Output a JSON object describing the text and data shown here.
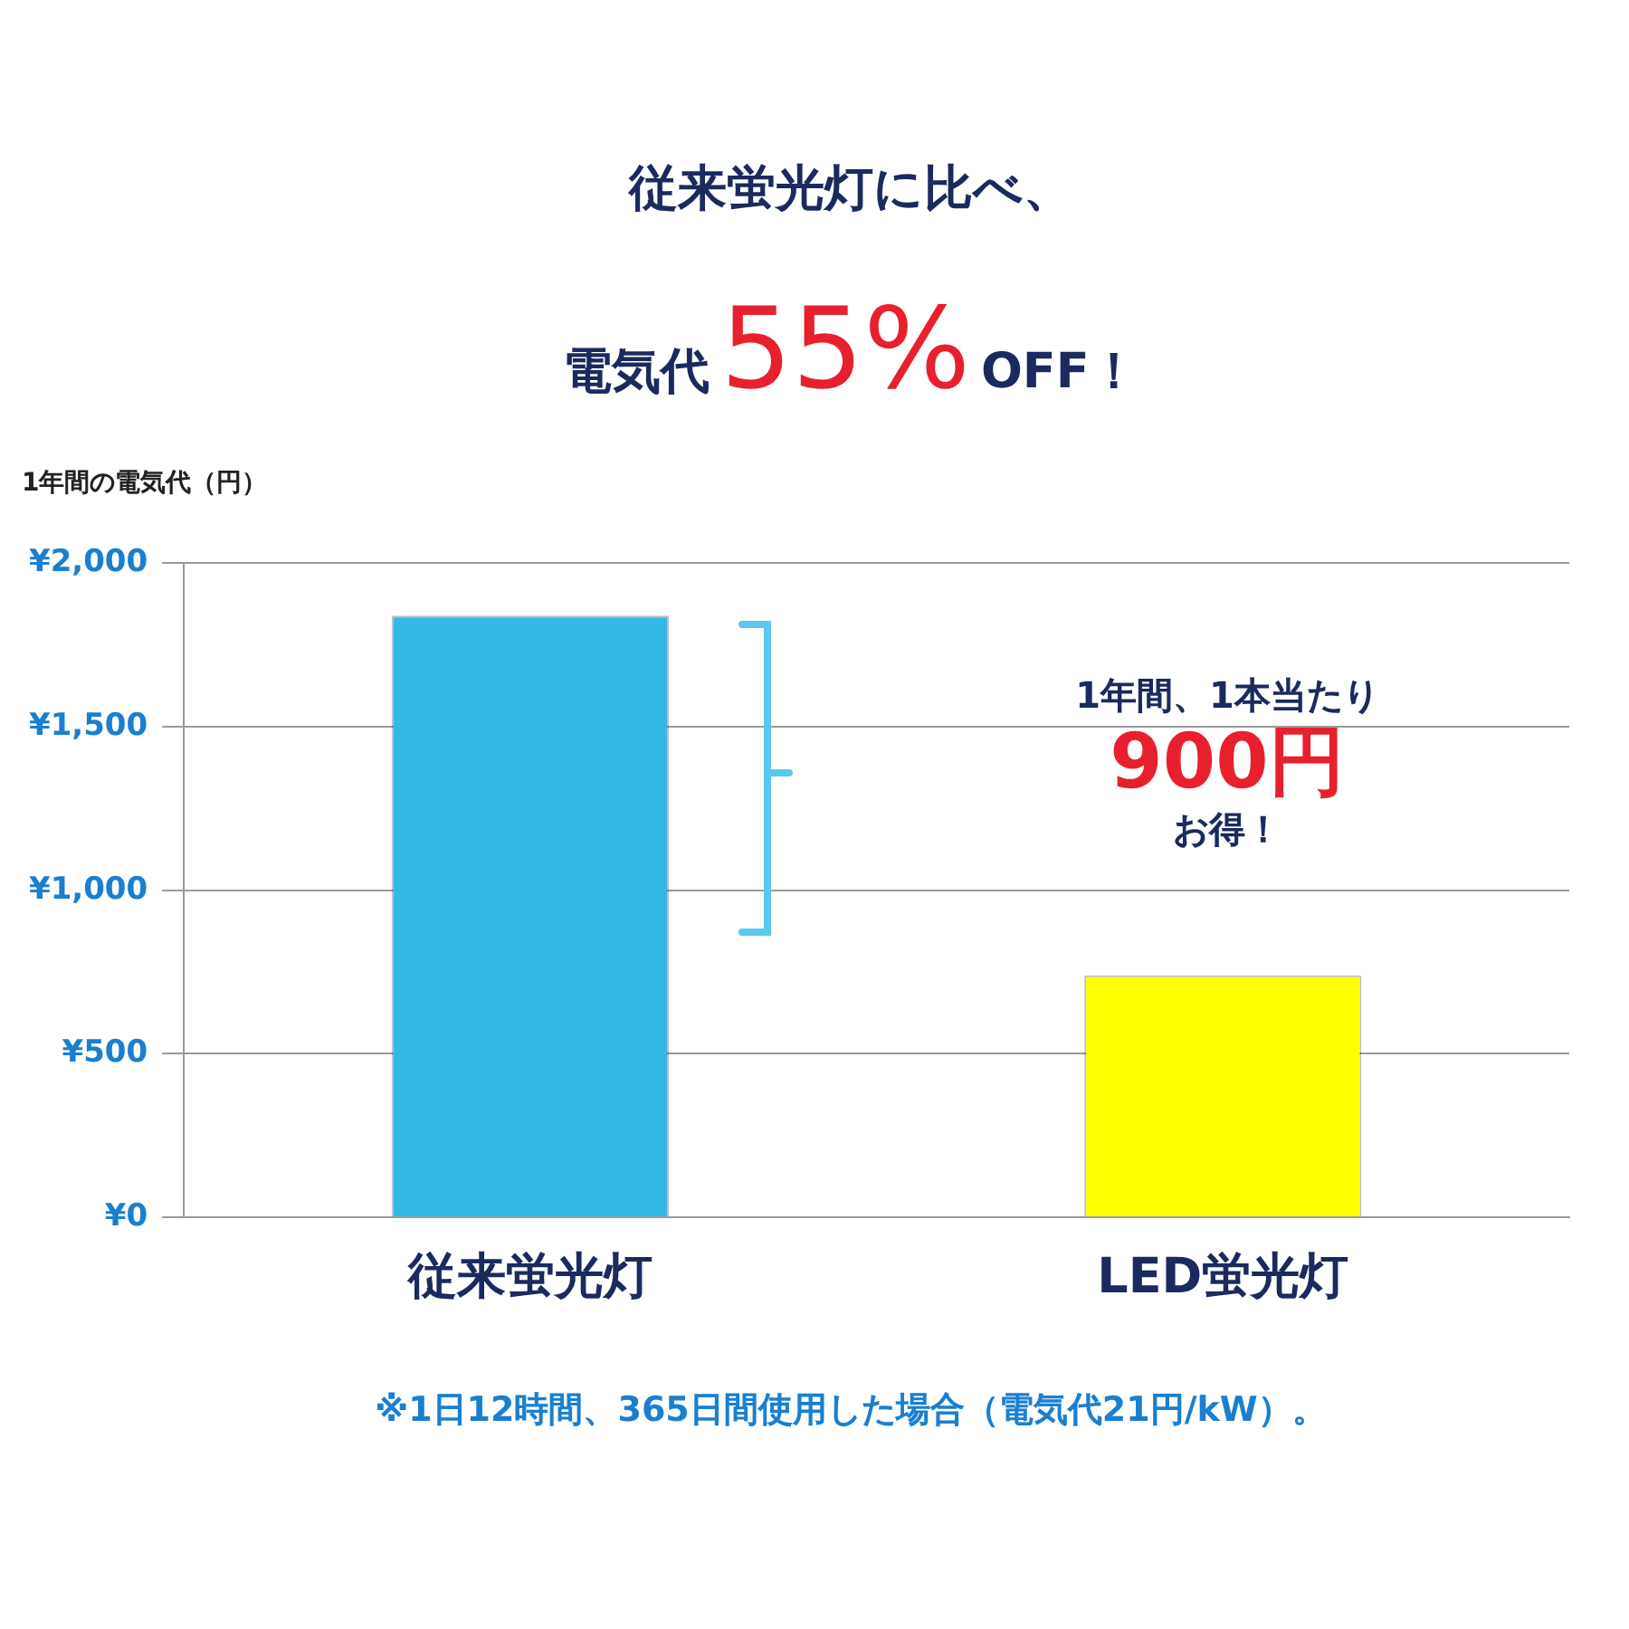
{
  "chart_data": {
    "type": "bar",
    "title": "従来蛍光灯に比べ、",
    "subtitle": "電気代55%OFF！",
    "ylabel": "1年間の電気代（円）",
    "categories": [
      "従来蛍光灯",
      "LED蛍光灯"
    ],
    "values": [
      1840,
      740
    ],
    "colors": [
      "#33b8e8",
      "#ffff00"
    ],
    "ylim": [
      0,
      2000
    ],
    "yticks": [
      {
        "value": 0,
        "label": "¥0"
      },
      {
        "value": 500,
        "label": "¥500"
      },
      {
        "value": 1000,
        "label": "¥1,000"
      },
      {
        "value": 1500,
        "label": "¥1,500"
      },
      {
        "value": 2000,
        "label": "¥2,000"
      }
    ],
    "grid": "y",
    "annotations": [
      "1年間、1本当たり",
      "900円",
      "お得！",
      "※1日12時間、365日間使用した場合（電気代21円/kW）。"
    ]
  }
}
